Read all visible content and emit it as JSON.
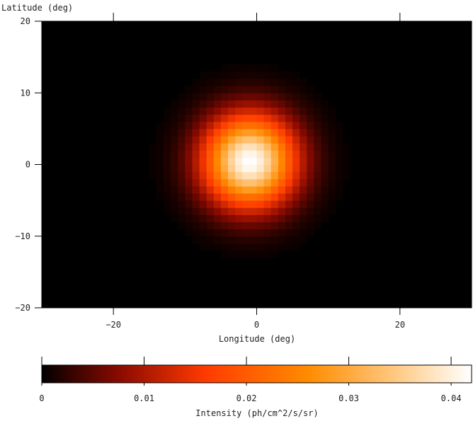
{
  "chart_data": [
    {
      "type": "heatmap",
      "title": "",
      "xlabel": "Longitude (deg)",
      "ylabel": "Latitude (deg)",
      "xlim": [
        -30,
        30
      ],
      "ylim": [
        -20,
        20
      ],
      "x_ticks": [
        -20,
        0,
        20
      ],
      "x_tick_labels": [
        "−20",
        "0",
        "20"
      ],
      "y_ticks": [
        20,
        10,
        0,
        -10,
        -20
      ],
      "y_tick_labels": [
        "20",
        "10",
        "0",
        "−10",
        "−20"
      ],
      "grid": false,
      "pixel_size_deg": 1,
      "source_model": {
        "shape": "gaussian",
        "center_lon": -1,
        "center_lat": 0.5,
        "sigma_deg": 4.5,
        "peak_intensity": 0.042
      },
      "background_color": "#000000"
    },
    {
      "type": "colorbar",
      "label": "Intensity (ph/cm^2/s/sr)",
      "range": [
        0,
        0.042
      ],
      "ticks": [
        0,
        0.01,
        0.02,
        0.03,
        0.04
      ],
      "tick_labels": [
        "0",
        "0.01",
        "0.02",
        "0.03",
        "0.04"
      ],
      "colormap_stops": [
        {
          "at": 0.0,
          "color": "#000000"
        },
        {
          "at": 0.18,
          "color": "#8a0a00"
        },
        {
          "at": 0.38,
          "color": "#ff3a00"
        },
        {
          "at": 0.62,
          "color": "#ff8c00"
        },
        {
          "at": 0.82,
          "color": "#ffc880"
        },
        {
          "at": 1.0,
          "color": "#ffffff"
        }
      ]
    }
  ]
}
